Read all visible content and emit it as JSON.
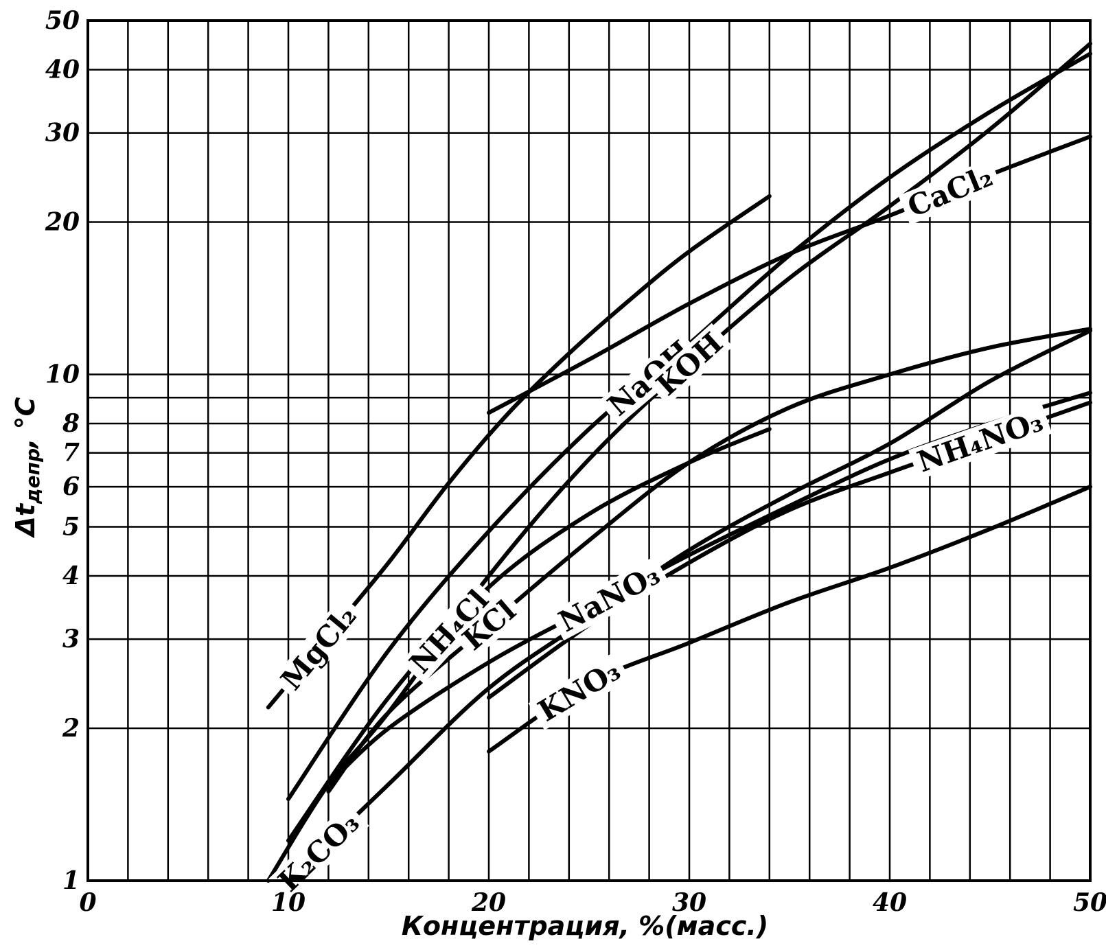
{
  "chart_data": {
    "type": "line",
    "title": "",
    "xlabel": "Концентрация, %(масс.)",
    "ylabel": "Δt_депр, °C",
    "ylabel_parts": {
      "symbol": "Δt",
      "subscript": "депр",
      "unit": ", °C"
    },
    "x_scale": "linear",
    "y_scale": "log",
    "xlim": [
      0,
      50
    ],
    "ylim": [
      1,
      50
    ],
    "x_ticks": [
      0,
      10,
      20,
      30,
      40,
      50
    ],
    "y_ticks": [
      1,
      2,
      3,
      4,
      5,
      6,
      7,
      8,
      10,
      20,
      30,
      40,
      50
    ],
    "x_grid": [
      2,
      4,
      6,
      8,
      10,
      12,
      14,
      16,
      18,
      20,
      22,
      24,
      26,
      28,
      30,
      32,
      34,
      36,
      38,
      40,
      42,
      44,
      46,
      48,
      50
    ],
    "y_grid": [
      1,
      2,
      3,
      4,
      5,
      6,
      7,
      8,
      9,
      10,
      20,
      30,
      40,
      50
    ],
    "grid": true,
    "legend": "inline labels on curves",
    "series": [
      {
        "name": "NaOH",
        "x": [
          10,
          15,
          20,
          25,
          30,
          35,
          40,
          45,
          50
        ],
        "y": [
          1.45,
          2.85,
          4.9,
          7.8,
          11.5,
          17.2,
          24.5,
          33.0,
          43.0
        ]
      },
      {
        "name": "KOH",
        "x": [
          9,
          12,
          15,
          20,
          25,
          30,
          35,
          40,
          45,
          50
        ],
        "y": [
          1.0,
          1.55,
          2.15,
          4.0,
          6.8,
          10.5,
          15.5,
          21.5,
          30.5,
          45.0
        ]
      },
      {
        "name": "MgCl₂",
        "x": [
          9,
          12,
          15,
          18,
          21,
          24,
          27,
          30,
          34
        ],
        "y": [
          2.2,
          3.05,
          4.25,
          6.1,
          8.4,
          11.0,
          14.0,
          17.5,
          22.5
        ]
      },
      {
        "name": "CaCl₂",
        "x": [
          20,
          25,
          30,
          35,
          40,
          45,
          50
        ],
        "y": [
          8.4,
          10.7,
          13.8,
          17.3,
          20.6,
          24.8,
          29.5
        ]
      },
      {
        "name": "NH₄Cl",
        "x": [
          10,
          15,
          20,
          25,
          30,
          34
        ],
        "y": [
          1.2,
          2.3,
          3.8,
          5.3,
          6.7,
          7.8
        ]
      },
      {
        "name": "KCl",
        "x": [
          12,
          15,
          20,
          25,
          30,
          35,
          40,
          45,
          50
        ],
        "y": [
          1.5,
          2.15,
          3.2,
          4.7,
          6.7,
          8.6,
          10.0,
          11.3,
          12.3
        ]
      },
      {
        "name": "K₂CO₃",
        "x": [
          10,
          15,
          20,
          25,
          30,
          35,
          40,
          45,
          50
        ],
        "y": [
          1.0,
          1.55,
          2.4,
          3.3,
          4.5,
          5.8,
          7.3,
          9.7,
          12.2
        ]
      },
      {
        "name": "NaNO₃",
        "x": [
          12,
          15,
          20,
          25,
          30,
          35,
          40,
          45,
          50
        ],
        "y": [
          1.55,
          2.0,
          2.7,
          3.45,
          4.4,
          5.5,
          6.8,
          8.0,
          9.2
        ]
      },
      {
        "name": "NH₄NO₃",
        "x": [
          20,
          25,
          30,
          35,
          40,
          45,
          50
        ],
        "y": [
          2.3,
          3.2,
          4.25,
          5.4,
          6.4,
          7.5,
          8.8
        ]
      },
      {
        "name": "KNO₃",
        "x": [
          20,
          25,
          30,
          35,
          40,
          45,
          50
        ],
        "y": [
          1.8,
          2.45,
          2.95,
          3.55,
          4.15,
          4.95,
          6.0
        ]
      }
    ]
  }
}
